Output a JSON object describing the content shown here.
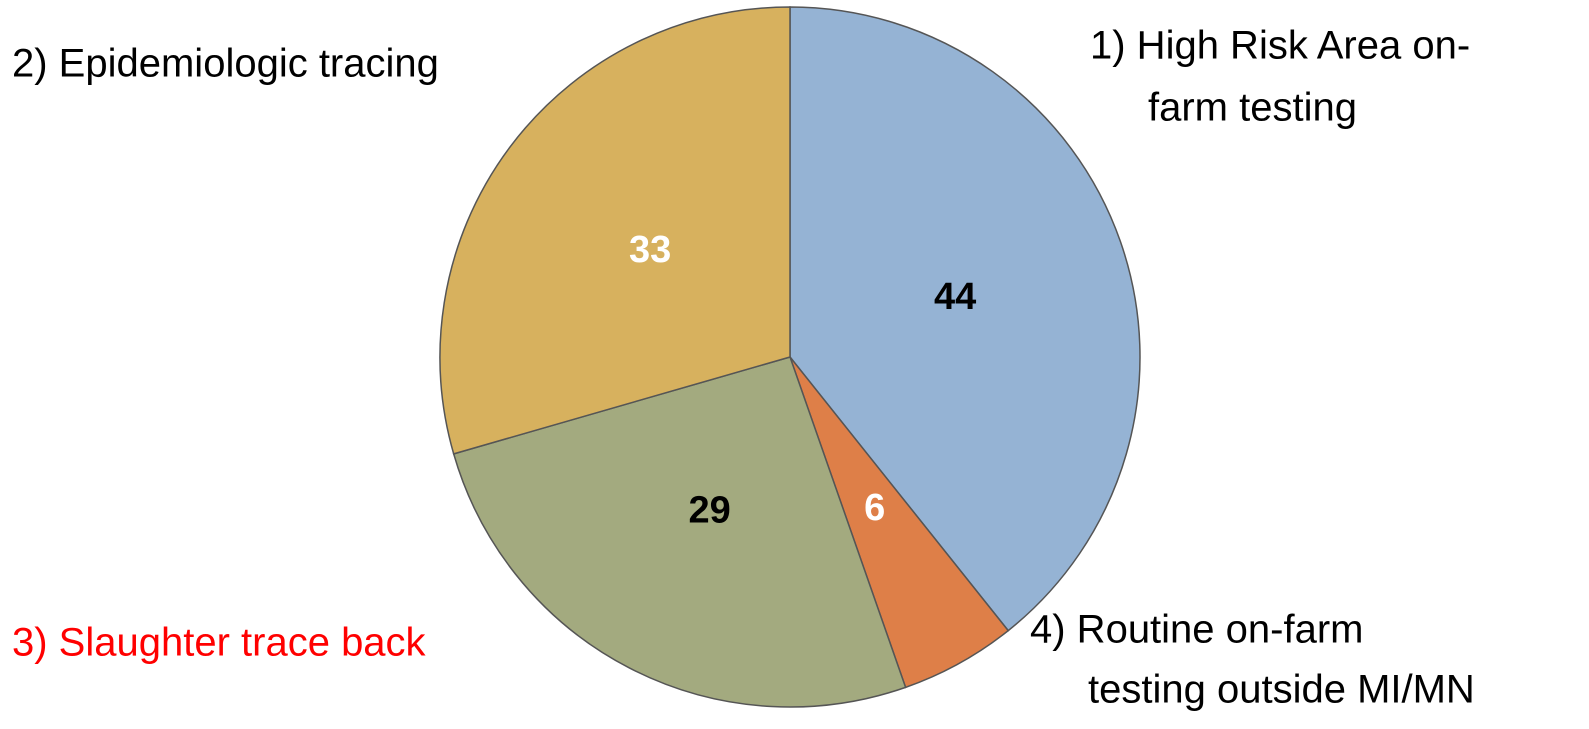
{
  "chart_data": {
    "type": "pie",
    "categories": [
      [
        "1) High Risk Area on-",
        "farm testing"
      ],
      [
        "4) Routine on-farm",
        "testing outside MI/MN"
      ],
      [
        "3) Slaughter trace back"
      ],
      [
        "2) Epidemiologic tracing"
      ]
    ],
    "values": [
      44,
      6,
      29,
      33
    ],
    "colors": [
      "#95b3d4",
      "#de7f48",
      "#a3aa7f",
      "#d7b15e"
    ],
    "value_label_colors": [
      "#000000",
      "#ffffff",
      "#000000",
      "#ffffff"
    ],
    "category_colors": [
      "#000000",
      "#000000",
      "#ff0000",
      "#000000"
    ]
  }
}
